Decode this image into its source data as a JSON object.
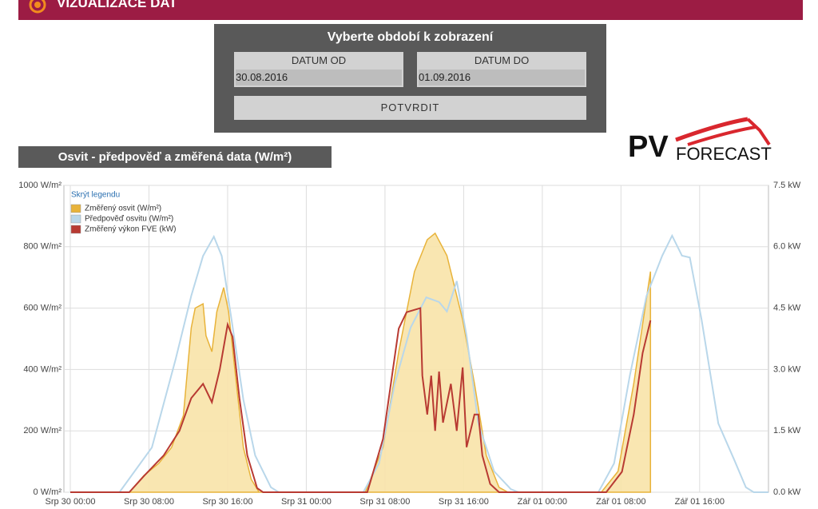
{
  "header": {
    "title": "VIZUALIZACE DAT"
  },
  "form": {
    "title": "Vyberte období k zobrazení",
    "from_label": "DATUM OD",
    "from_value": "30.08.2016",
    "to_label": "DATUM DO",
    "to_value": "01.09.2016",
    "button": "POTVRDIT"
  },
  "logo": {
    "big": "PV",
    "small": "FORECAST"
  },
  "chart_data": {
    "type": "line",
    "title": "Osvit - předpověď a změřená data (W/m²)",
    "legend_toggle": "Skrýt legendu",
    "legend": "top-left",
    "grid": true,
    "xlim": [
      -0.65,
      71
    ],
    "xticks": [
      {
        "value": 0,
        "label": "Srp 30 00:00"
      },
      {
        "value": 8,
        "label": "Srp 30 08:00"
      },
      {
        "value": 16,
        "label": "Srp 30 16:00"
      },
      {
        "value": 24,
        "label": "Srp 31 00:00"
      },
      {
        "value": 32,
        "label": "Srp 31 08:00"
      },
      {
        "value": 40,
        "label": "Srp 31 16:00"
      },
      {
        "value": 48,
        "label": "Zář 01 00:00"
      },
      {
        "value": 56,
        "label": "Zář 01 08:00"
      },
      {
        "value": 64,
        "label": "Zář 01 16:00"
      }
    ],
    "ylim": [
      0,
      1000
    ],
    "yticks": [
      {
        "value": 0,
        "label": "0 W/m²"
      },
      {
        "value": 200,
        "label": "200 W/m²"
      },
      {
        "value": 400,
        "label": "400 W/m²"
      },
      {
        "value": 600,
        "label": "600 W/m²"
      },
      {
        "value": 800,
        "label": "800 W/m²"
      },
      {
        "value": 1000,
        "label": "1000 W/m²"
      }
    ],
    "y2lim": [
      0,
      7.5
    ],
    "y2ticks": [
      {
        "value": 0,
        "label": "0.0 kW"
      },
      {
        "value": 1.5,
        "label": "1.5 kW"
      },
      {
        "value": 3,
        "label": "3.0 kW"
      },
      {
        "value": 4.5,
        "label": "4.5 kW"
      },
      {
        "value": 6,
        "label": "6.0 kW"
      },
      {
        "value": 7.5,
        "label": "7.5 kW"
      }
    ],
    "series": [
      {
        "name": "Změřený osvit (W/m²)",
        "type": "area",
        "color": "#e8b33a",
        "x": [
          0,
          6,
          7.5,
          9,
          10.3,
          11.5,
          12.3,
          12.7,
          13.5,
          13.8,
          14.4,
          14.9,
          15.6,
          16.1,
          16.8,
          17.6,
          18.4,
          19.2,
          30,
          31.8,
          33.4,
          35,
          36.3,
          37.1,
          38.3,
          39.9,
          41.1,
          42.3,
          43.6,
          44.5,
          54,
          55.7,
          57.3,
          59
        ],
        "values": [
          0,
          0,
          55,
          94,
          146,
          250,
          536,
          600,
          614,
          510,
          458,
          588,
          667,
          588,
          380,
          146,
          42,
          0,
          0,
          146,
          458,
          719,
          823,
          844,
          771,
          562,
          354,
          120,
          16,
          0,
          0,
          68,
          354,
          719
        ]
      },
      {
        "name": "Předpověď osvitu (W/m²)",
        "type": "line",
        "color": "#b9d7ea",
        "x": [
          0,
          5,
          8.3,
          10.7,
          12.3,
          13.5,
          14.6,
          15.4,
          16.4,
          17.6,
          18.8,
          20.4,
          21.2,
          29.8,
          31.4,
          33,
          34.6,
          36.2,
          37.5,
          38.3,
          39.3,
          40.3,
          41.5,
          43.1,
          44.8,
          45.6,
          53.7,
          55.3,
          56.9,
          58.6,
          60.2,
          61.2,
          62.2,
          63,
          64.2,
          65.9,
          67.5,
          68.7,
          69.5,
          71
        ],
        "values": [
          0,
          0,
          146,
          432,
          640,
          770,
          833,
          770,
          562,
          302,
          120,
          16,
          0,
          0,
          94,
          354,
          536,
          635,
          620,
          589,
          688,
          510,
          224,
          68,
          10,
          0,
          0,
          94,
          380,
          640,
          771,
          836,
          771,
          765,
          562,
          224,
          107,
          16,
          0,
          0
        ]
      },
      {
        "name": "Změřený výkon FVE (kW)",
        "type": "line",
        "axis": "y2",
        "color": "#b83a32",
        "x": [
          0,
          6,
          7.5,
          9.5,
          11.1,
          12.3,
          13.5,
          14.4,
          15.2,
          16,
          16.5,
          17.2,
          18,
          19,
          19.6,
          30.2,
          31.8,
          33.4,
          34.2,
          35.6,
          35.8,
          36.3,
          36.7,
          37.1,
          37.5,
          37.9,
          38.7,
          39.3,
          39.9,
          40.3,
          41.1,
          41.5,
          41.9,
          42.7,
          43.6,
          54.5,
          56.1,
          57.3,
          58.2,
          59
        ],
        "values": [
          0,
          0,
          0.4,
          0.9,
          1.5,
          2.3,
          2.65,
          2.2,
          3.0,
          4.1,
          3.8,
          2.3,
          0.9,
          0.1,
          0,
          0,
          1.3,
          4.0,
          4.4,
          4.5,
          2.85,
          1.9,
          2.85,
          1.5,
          2.95,
          1.7,
          2.65,
          1.5,
          3.05,
          1.1,
          1.9,
          1.9,
          0.9,
          0.2,
          0,
          0,
          0.5,
          1.9,
          3.4,
          4.2
        ]
      }
    ]
  }
}
